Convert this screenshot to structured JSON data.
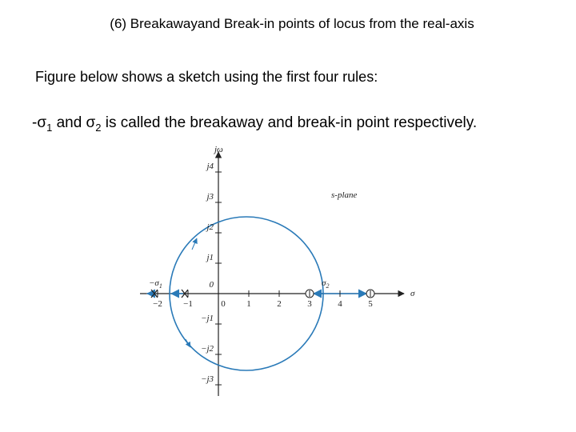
{
  "header": {
    "title": "(6) Breakawayand Break-in points of locus from the real-axis"
  },
  "body": {
    "line1": "Figure below shows a sketch using the first four rules:",
    "line2": {
      "prefix": "-σ",
      "sub1": "1",
      "mid": " and σ",
      "sub2": "2",
      "rest": " is called the breakaway and break-in point respectively."
    }
  },
  "figure": {
    "imag_axis_label": "jω",
    "real_axis_label": "σ",
    "plane_label": "s-plane",
    "imag_ticks": [
      "j4",
      "j3",
      "j2",
      "j1",
      "0",
      "−j1",
      "−j2",
      "−j3"
    ],
    "real_ticks": [
      "−2",
      "−1",
      "0",
      "1",
      "2",
      "3",
      "4",
      "5"
    ],
    "breakaway_label": {
      "text": "−σ",
      "sub": "1"
    },
    "breakin_label": {
      "text": "σ",
      "sub": "2"
    }
  }
}
